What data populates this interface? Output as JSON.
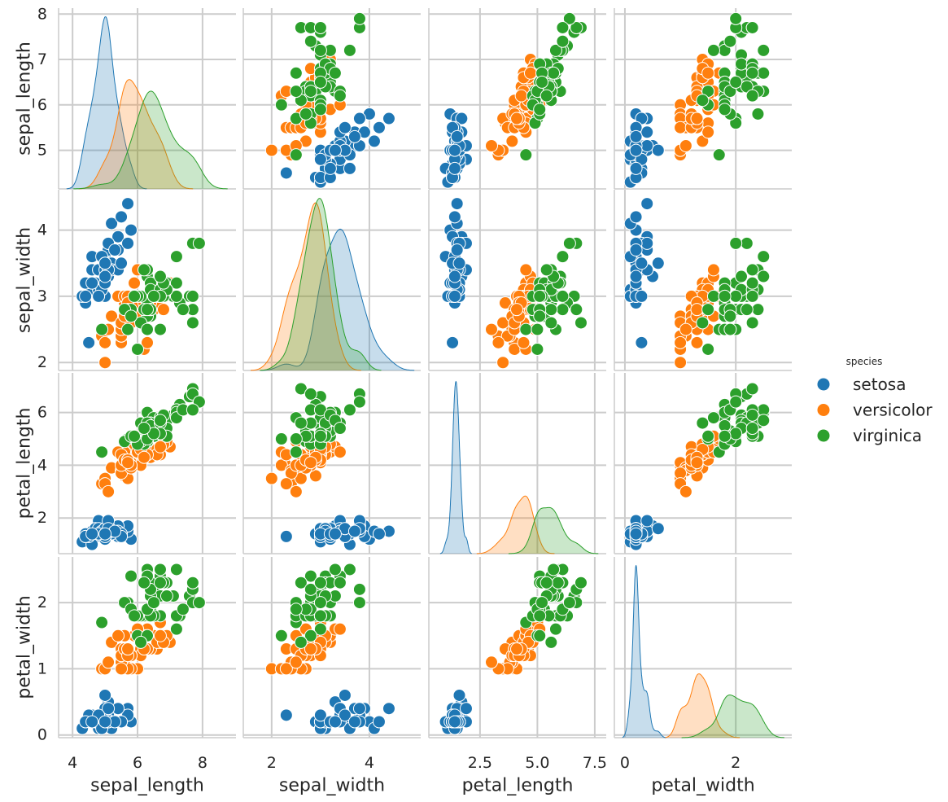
{
  "chart_data": {
    "type": "pairplot",
    "variables": [
      "sepal_length",
      "sepal_width",
      "petal_length",
      "petal_width"
    ],
    "xlims": [
      [
        3.57,
        9.03
      ],
      [
        1.42,
        5.05
      ],
      [
        0.27,
        8.0
      ],
      [
        -0.19,
        3.01
      ]
    ],
    "ylims": [
      [
        4.15,
        8.13
      ],
      [
        1.88,
        4.61
      ],
      [
        0.65,
        7.5
      ],
      [
        -0.04,
        2.69
      ]
    ],
    "xticks": [
      [
        4,
        6,
        8
      ],
      [
        2,
        4
      ],
      [
        2.5,
        {
          "value": 5,
          "label": "5.0"
        },
        7.5
      ],
      [
        0,
        2
      ]
    ],
    "yticks": [
      [
        5,
        6,
        7,
        8
      ],
      [
        2,
        3,
        4
      ],
      [
        2,
        4,
        6
      ],
      [
        0,
        1,
        2
      ]
    ],
    "grid": true,
    "legend_title": "species",
    "series": [
      {
        "name": "setosa",
        "color": "#1f77b4",
        "values": [
          [
            5.1,
            4.9,
            4.7,
            4.6,
            5.0,
            5.4,
            4.6,
            5.0,
            4.4,
            4.9,
            5.4,
            4.8,
            4.8,
            4.3,
            5.8,
            5.7,
            5.4,
            5.1,
            5.7,
            5.1,
            5.4,
            5.1,
            4.6,
            5.1,
            4.8,
            5.0,
            5.0,
            5.2,
            5.2,
            4.7,
            4.8,
            5.4,
            5.2,
            5.5,
            4.9,
            5.0,
            5.5,
            4.9,
            4.4,
            5.1,
            5.0,
            4.5,
            4.4,
            5.0,
            5.1,
            4.8,
            5.1,
            4.6,
            5.3,
            5.0
          ],
          [
            3.5,
            3.0,
            3.2,
            3.1,
            3.6,
            3.9,
            3.4,
            3.4,
            2.9,
            3.1,
            3.7,
            3.4,
            3.0,
            3.0,
            4.0,
            4.4,
            3.9,
            3.5,
            3.8,
            3.8,
            3.4,
            3.7,
            3.6,
            3.3,
            3.4,
            3.0,
            3.4,
            3.5,
            3.4,
            3.2,
            3.1,
            3.4,
            4.1,
            4.2,
            3.1,
            3.2,
            3.5,
            3.6,
            3.0,
            3.4,
            3.5,
            2.3,
            3.2,
            3.5,
            3.8,
            3.0,
            3.8,
            3.2,
            3.7,
            3.3
          ],
          [
            1.4,
            1.4,
            1.3,
            1.5,
            1.4,
            1.7,
            1.4,
            1.5,
            1.4,
            1.5,
            1.5,
            1.6,
            1.4,
            1.1,
            1.2,
            1.5,
            1.3,
            1.4,
            1.7,
            1.5,
            1.7,
            1.5,
            1.0,
            1.7,
            1.9,
            1.6,
            1.6,
            1.5,
            1.4,
            1.6,
            1.6,
            1.5,
            1.5,
            1.4,
            1.5,
            1.2,
            1.3,
            1.4,
            1.3,
            1.5,
            1.3,
            1.3,
            1.3,
            1.6,
            1.9,
            1.4,
            1.6,
            1.4,
            1.5,
            1.4
          ],
          [
            0.2,
            0.2,
            0.2,
            0.2,
            0.2,
            0.4,
            0.3,
            0.2,
            0.2,
            0.1,
            0.2,
            0.2,
            0.1,
            0.1,
            0.2,
            0.4,
            0.4,
            0.3,
            0.3,
            0.3,
            0.2,
            0.4,
            0.2,
            0.5,
            0.2,
            0.2,
            0.4,
            0.2,
            0.2,
            0.2,
            0.2,
            0.4,
            0.1,
            0.2,
            0.2,
            0.2,
            0.2,
            0.1,
            0.2,
            0.2,
            0.3,
            0.3,
            0.2,
            0.6,
            0.4,
            0.3,
            0.2,
            0.2,
            0.2,
            0.2
          ]
        ]
      },
      {
        "name": "versicolor",
        "color": "#ff7f0e",
        "values": [
          [
            7.0,
            6.4,
            6.9,
            5.5,
            6.5,
            5.7,
            6.3,
            4.9,
            6.6,
            5.2,
            5.0,
            5.9,
            6.0,
            6.1,
            5.6,
            6.7,
            5.6,
            5.8,
            6.2,
            5.6,
            5.9,
            6.1,
            6.3,
            6.1,
            6.4,
            6.6,
            6.8,
            6.7,
            6.0,
            5.7,
            5.5,
            5.5,
            5.8,
            6.0,
            5.4,
            6.0,
            6.7,
            6.3,
            5.6,
            5.5,
            5.5,
            6.1,
            5.8,
            5.0,
            5.6,
            5.7,
            5.7,
            6.2,
            5.1,
            5.7
          ],
          [
            3.2,
            3.2,
            3.1,
            2.3,
            2.8,
            2.8,
            3.3,
            2.4,
            2.9,
            2.7,
            2.0,
            3.0,
            2.2,
            2.9,
            2.9,
            3.1,
            3.0,
            2.7,
            2.2,
            2.5,
            3.2,
            2.8,
            2.5,
            2.8,
            2.9,
            3.0,
            2.8,
            3.0,
            2.9,
            2.6,
            2.4,
            2.4,
            2.7,
            2.7,
            3.0,
            3.4,
            3.1,
            2.3,
            3.0,
            2.5,
            2.6,
            3.0,
            2.6,
            2.3,
            2.7,
            3.0,
            2.9,
            2.9,
            2.5,
            2.8
          ],
          [
            4.7,
            4.5,
            4.9,
            4.0,
            4.6,
            4.5,
            4.7,
            3.3,
            4.6,
            3.9,
            3.5,
            4.2,
            4.0,
            4.7,
            3.6,
            4.4,
            4.5,
            4.1,
            4.5,
            3.9,
            4.8,
            4.0,
            4.9,
            4.7,
            4.3,
            4.4,
            4.8,
            5.0,
            4.5,
            3.5,
            3.8,
            3.7,
            3.9,
            5.1,
            4.5,
            4.5,
            4.7,
            4.4,
            4.1,
            4.0,
            4.4,
            4.6,
            4.0,
            3.3,
            4.2,
            4.2,
            4.2,
            4.3,
            3.0,
            4.1
          ],
          [
            1.4,
            1.5,
            1.5,
            1.3,
            1.5,
            1.3,
            1.6,
            1.0,
            1.3,
            1.4,
            1.0,
            1.5,
            1.0,
            1.4,
            1.3,
            1.4,
            1.5,
            1.0,
            1.5,
            1.1,
            1.8,
            1.3,
            1.5,
            1.2,
            1.3,
            1.4,
            1.4,
            1.7,
            1.5,
            1.0,
            1.1,
            1.0,
            1.2,
            1.6,
            1.5,
            1.6,
            1.5,
            1.3,
            1.3,
            1.3,
            1.2,
            1.4,
            1.2,
            1.0,
            1.3,
            1.2,
            1.3,
            1.3,
            1.1,
            1.3
          ]
        ]
      },
      {
        "name": "virginica",
        "color": "#2ca02c",
        "values": [
          [
            6.3,
            5.8,
            7.1,
            6.3,
            6.5,
            7.6,
            4.9,
            7.3,
            6.7,
            7.2,
            6.5,
            6.4,
            6.8,
            5.7,
            5.8,
            6.4,
            6.5,
            7.7,
            7.7,
            6.0,
            6.9,
            5.6,
            7.7,
            6.3,
            6.7,
            7.2,
            6.2,
            6.1,
            6.4,
            7.2,
            7.4,
            7.9,
            6.4,
            6.3,
            6.1,
            7.7,
            6.3,
            6.4,
            6.0,
            6.9,
            6.7,
            6.9,
            5.8,
            6.8,
            6.7,
            6.7,
            6.3,
            6.5,
            6.2,
            5.9
          ],
          [
            3.3,
            2.7,
            3.0,
            2.9,
            3.0,
            3.0,
            2.5,
            2.9,
            2.5,
            3.6,
            3.2,
            2.7,
            3.0,
            2.5,
            2.8,
            3.2,
            3.0,
            3.8,
            2.6,
            2.2,
            3.2,
            2.8,
            2.8,
            2.7,
            3.3,
            3.2,
            2.8,
            3.0,
            2.8,
            3.0,
            2.8,
            3.8,
            2.8,
            2.8,
            2.6,
            3.0,
            3.4,
            3.1,
            3.0,
            3.1,
            3.1,
            3.1,
            2.7,
            3.2,
            3.3,
            3.0,
            2.5,
            3.0,
            3.4,
            3.0
          ],
          [
            6.0,
            5.1,
            5.9,
            5.6,
            5.8,
            6.6,
            4.5,
            6.3,
            5.8,
            6.1,
            5.1,
            5.3,
            5.5,
            5.0,
            5.1,
            5.3,
            5.5,
            6.7,
            6.9,
            5.0,
            5.7,
            4.9,
            6.7,
            4.9,
            5.7,
            6.0,
            4.8,
            4.9,
            5.6,
            5.8,
            6.1,
            6.4,
            5.6,
            5.1,
            5.6,
            6.1,
            5.6,
            5.5,
            4.8,
            5.4,
            5.6,
            5.1,
            5.1,
            5.9,
            5.7,
            5.2,
            5.0,
            5.2,
            5.4,
            5.1
          ],
          [
            2.5,
            1.9,
            2.1,
            1.8,
            2.2,
            2.1,
            1.7,
            1.8,
            1.8,
            2.5,
            2.0,
            1.9,
            2.1,
            2.0,
            2.4,
            2.3,
            1.8,
            2.2,
            2.3,
            1.5,
            2.3,
            2.0,
            2.0,
            1.8,
            2.1,
            1.8,
            1.8,
            1.8,
            2.1,
            1.6,
            1.9,
            2.0,
            2.2,
            1.5,
            1.4,
            2.3,
            2.4,
            1.8,
            1.8,
            2.1,
            2.4,
            2.3,
            1.9,
            2.3,
            2.5,
            2.3,
            1.9,
            2.0,
            2.3,
            1.8
          ]
        ]
      }
    ]
  }
}
